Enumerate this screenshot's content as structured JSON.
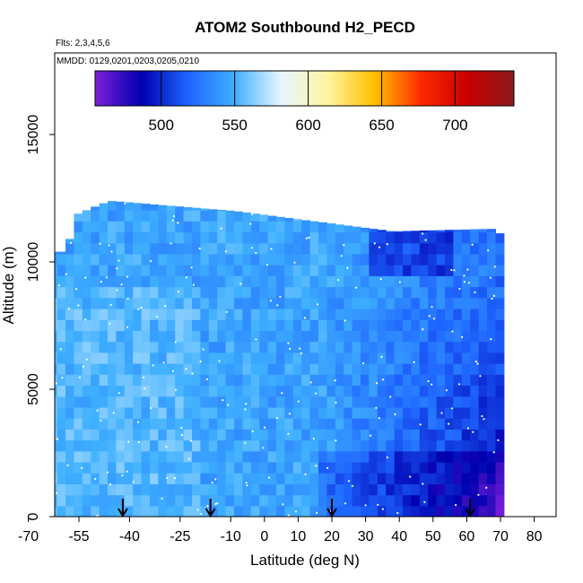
{
  "chart_data": {
    "type": "heatmap",
    "title": "ATOM2 Southbound H2_PECD",
    "flights_note": "Flts: 2,3,4,5,6",
    "dates_note": "MMDD: 0129,0201,0203,0205,0210",
    "xlabel": "Latitude (deg N)",
    "ylabel": "Altitude (m)",
    "xlim": [
      -70,
      85
    ],
    "ylim": [
      0,
      17500
    ],
    "x_ticks": [
      -70,
      -55,
      -40,
      -25,
      -10,
      0,
      10,
      20,
      30,
      40,
      50,
      60,
      70,
      80
    ],
    "x_tick_labels": [
      "-70",
      "-55",
      "-40",
      "-25",
      "-10",
      "0",
      "10",
      "20",
      "30",
      "40",
      "50",
      "60",
      "70",
      "80"
    ],
    "y_ticks": [
      0,
      5000,
      10000,
      15000
    ],
    "y_tick_labels": [
      "0",
      "5000",
      "10000",
      "15000"
    ],
    "colorbar": {
      "min": 455,
      "max": 740,
      "ticks": [
        500,
        550,
        600,
        650,
        700
      ],
      "tick_labels": [
        "500",
        "550",
        "600",
        "650",
        "700"
      ],
      "colors": [
        "#7b1fd8",
        "#0000b0",
        "#1e64ff",
        "#3fb0ff",
        "#e8f6ff",
        "#fff4a0",
        "#ffc000",
        "#ff2a00",
        "#c80000",
        "#8a1a1a"
      ]
    },
    "coverage": {
      "lat_min": -64,
      "lat_max": 71,
      "top_altitude_by_lat": [
        {
          "lat": -64,
          "alt": 10400
        },
        {
          "lat": -60,
          "alt": 10900
        },
        {
          "lat": -57,
          "alt": 11800
        },
        {
          "lat": -46,
          "alt": 12400
        },
        {
          "lat": -9,
          "alt": 12000
        },
        {
          "lat": 38,
          "alt": 11200
        },
        {
          "lat": 68,
          "alt": 11300
        },
        {
          "lat": 71,
          "alt": 11000
        }
      ]
    },
    "profile_locations_lat": [
      -42,
      -16,
      20,
      61
    ],
    "mean_h2_pecd_note": "values mostly 500-560; lowest (about 470-500) north of 30 deg N below 10000 m"
  }
}
